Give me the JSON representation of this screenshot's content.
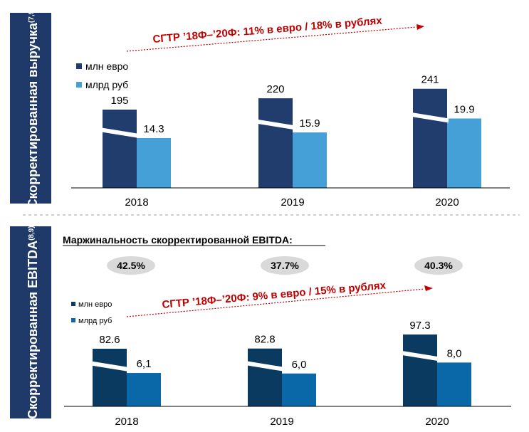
{
  "colors": {
    "side_band": "#1f3a68",
    "eur_top": "#203d6e",
    "rub_top": "#45a0d8",
    "eur_bottom": "#0b3a60",
    "rub_bottom": "#0a68a8",
    "cagr_text": "#c00000",
    "pill": "#d9d9d9"
  },
  "chart_data": [
    {
      "type": "bar",
      "side_label": "Скорректированная выручка",
      "side_label_sup": "(7,9)",
      "categories": [
        "2018",
        "2019",
        "2020"
      ],
      "series": [
        {
          "name": "млн евро",
          "values": [
            195,
            220,
            241
          ],
          "labels": [
            "195",
            "220",
            "241"
          ]
        },
        {
          "name": "млрд руб",
          "values": [
            14.3,
            15.9,
            19.9
          ],
          "labels": [
            "14.3",
            "15.9",
            "19.9"
          ]
        }
      ],
      "annotation": "СГТР ’18Ф–’20Ф: 11% в евро / 18% в рублях",
      "legend_position": "top-left",
      "axis_break": true
    },
    {
      "type": "bar",
      "side_label": "Скорректированная EBITDA",
      "side_label_sup": "(8,9)",
      "heading": "Маржинальность скорректированной EBITDA:",
      "margins": [
        "42.5%",
        "37.7%",
        "40.3%"
      ],
      "categories": [
        "2018",
        "2019",
        "2020"
      ],
      "series": [
        {
          "name": "млн евро",
          "values": [
            82.6,
            82.8,
            97.3
          ],
          "labels": [
            "82.6",
            "82.8",
            "97.3"
          ]
        },
        {
          "name": "млрд руб",
          "values": [
            6.1,
            6.0,
            8.0
          ],
          "labels": [
            "6,1",
            "6,0",
            "8,0"
          ]
        }
      ],
      "annotation": "СГТР ’18Ф–’20Ф: 9% в евро / 15% в рублях",
      "legend_position": "top-left",
      "axis_break": true
    }
  ]
}
